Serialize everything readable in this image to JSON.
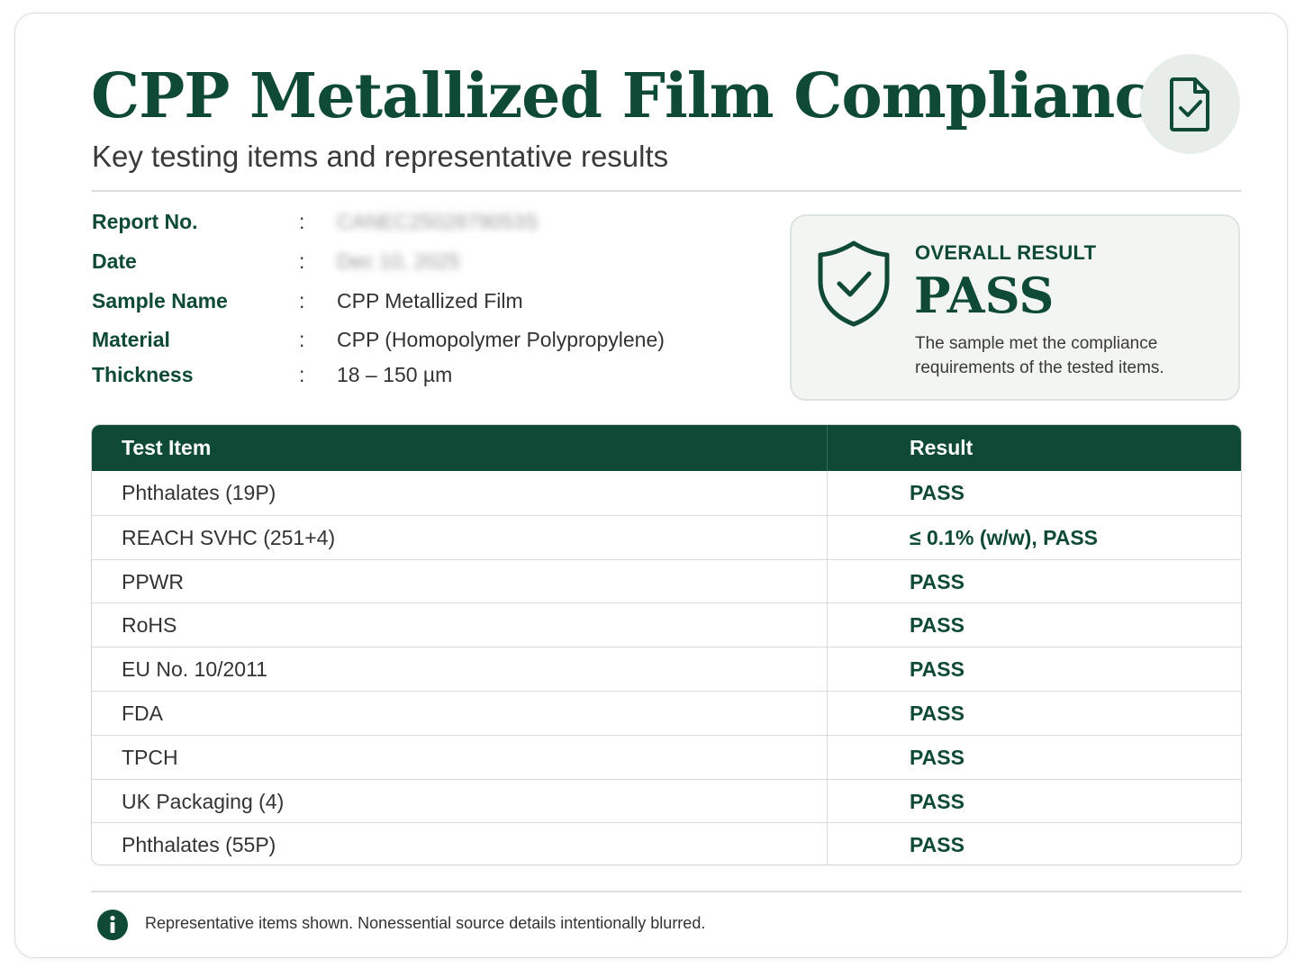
{
  "header": {
    "title": "CPP Metallized Film Compliance",
    "subtitle": "Key testing items and representative results",
    "badge_icon": "document-check-icon"
  },
  "info": [
    {
      "label": "Report No.",
      "colon": ":",
      "value": "CANEC2502879053S",
      "blurred": true
    },
    {
      "label": "Date",
      "colon": ":",
      "value": "Dec 10, 2025",
      "blurred": true
    },
    {
      "label": "Sample Name",
      "colon": ":",
      "value": "CPP Metallized Film"
    },
    {
      "label": "Material",
      "colon": ":",
      "value": "CPP (Homopolymer Polypropylene)"
    },
    {
      "label": "Thickness",
      "colon": ":",
      "value": "18 – 150 µm"
    }
  ],
  "overall": {
    "icon": "shield-check-icon",
    "label": "OVERALL RESULT",
    "value": "PASS",
    "description": "The sample met the compliance requirements of the tested items."
  },
  "table": {
    "headers": [
      "Test Item",
      "Result"
    ],
    "rows": [
      {
        "item": "Phthalates (19P)",
        "result": "PASS"
      },
      {
        "item": "REACH SVHC (251+4)",
        "result": "≤ 0.1% (w/w), PASS"
      },
      {
        "item": "PPWR",
        "result": "PASS"
      },
      {
        "item": "RoHS",
        "result": "PASS"
      },
      {
        "item": "EU No. 10/2011",
        "result": "PASS"
      },
      {
        "item": "FDA",
        "result": "PASS"
      },
      {
        "item": "TPCH",
        "result": "PASS"
      },
      {
        "item": "UK Packaging (4)",
        "result": "PASS"
      },
      {
        "item": "Phthalates (55P)",
        "result": "PASS"
      }
    ]
  },
  "footer": {
    "icon": "info-icon",
    "text": "Representative items shown. Nonessential source details intentionally blurred."
  },
  "colors": {
    "brand_green": "#0f4a37",
    "badge_bg": "#e7eee9",
    "result_box_bg": "#f2f5f1"
  }
}
